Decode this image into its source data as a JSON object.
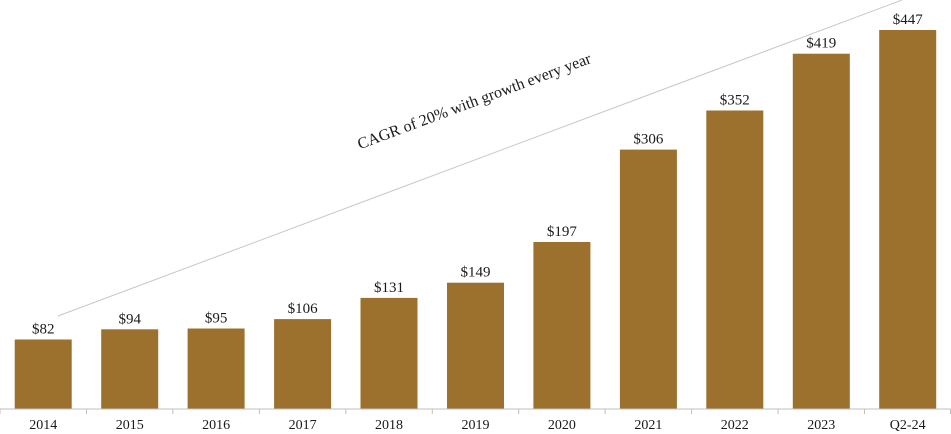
{
  "chart_data": {
    "type": "bar",
    "categories": [
      "2014",
      "2015",
      "2016",
      "2017",
      "2018",
      "2019",
      "2020",
      "2021",
      "2022",
      "2023",
      "Q2-24"
    ],
    "values": [
      82,
      94,
      95,
      106,
      131,
      149,
      197,
      306,
      352,
      419,
      447
    ],
    "value_labels": [
      "$82",
      "$94",
      "$95",
      "$106",
      "$131",
      "$149",
      "$197",
      "$306",
      "$352",
      "$419",
      "$447"
    ],
    "title": "",
    "xlabel": "",
    "ylabel": "",
    "ylim": [
      0,
      447
    ],
    "grid": false,
    "bar_color": "#9c702d",
    "annotation": "CAGR of 20% with growth every year"
  }
}
